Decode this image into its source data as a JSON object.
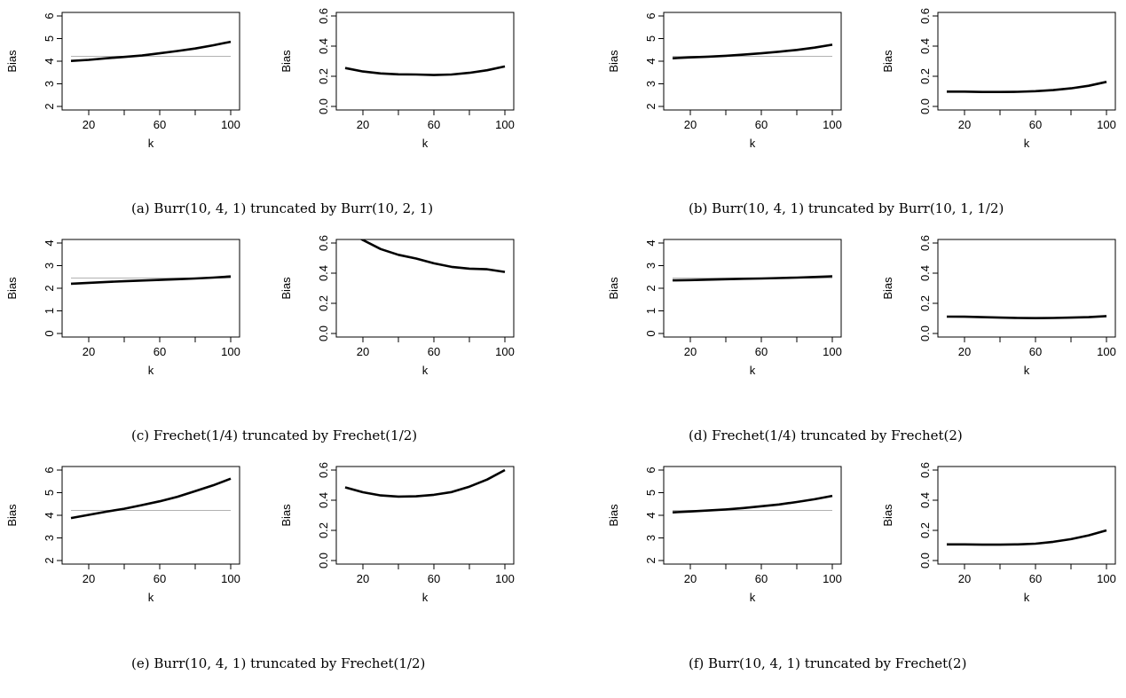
{
  "chart_data": [
    {
      "type": "line",
      "caption": "(a) Burr(10, 4, 1) truncated by Burr(10, 2, 1)",
      "panels": [
        {
          "xlabel": "k",
          "ylabel": "Bias",
          "xlim": [
            10,
            100
          ],
          "xticks": [
            20,
            40,
            60,
            80,
            100
          ],
          "xtick_labels": [
            "20",
            "",
            "60",
            "",
            "100"
          ],
          "ylim": [
            2,
            6
          ],
          "yticks": [
            2,
            3,
            4,
            5,
            6
          ],
          "ytick_labels": [
            "2",
            "3",
            "4",
            "5",
            "6"
          ],
          "reference": 4.22,
          "x": [
            10,
            20,
            30,
            40,
            50,
            60,
            70,
            80,
            90,
            100
          ],
          "y": [
            4.01,
            4.06,
            4.13,
            4.19,
            4.25,
            4.35,
            4.45,
            4.56,
            4.7,
            4.86
          ]
        },
        {
          "xlabel": "k",
          "ylabel": "Bias",
          "xlim": [
            10,
            100
          ],
          "xticks": [
            20,
            40,
            60,
            80,
            100
          ],
          "xtick_labels": [
            "20",
            "",
            "60",
            "",
            "100"
          ],
          "ylim": [
            0,
            0.6
          ],
          "yticks": [
            0,
            0.2,
            0.4,
            0.6
          ],
          "ytick_labels": [
            "0.0",
            "0.2",
            "0.4",
            "0.6"
          ],
          "x": [
            10,
            20,
            30,
            40,
            50,
            60,
            70,
            80,
            90,
            100
          ],
          "y": [
            0.255,
            0.232,
            0.219,
            0.213,
            0.212,
            0.208,
            0.212,
            0.223,
            0.24,
            0.265
          ]
        }
      ]
    },
    {
      "type": "line",
      "caption": "(b) Burr(10, 4, 1) truncated by Burr(10, 1, 1/2)",
      "panels": [
        {
          "xlabel": "k",
          "ylabel": "Bias",
          "xlim": [
            10,
            100
          ],
          "xticks": [
            20,
            40,
            60,
            80,
            100
          ],
          "xtick_labels": [
            "20",
            "",
            "60",
            "",
            "100"
          ],
          "ylim": [
            2,
            6
          ],
          "yticks": [
            2,
            3,
            4,
            5,
            6
          ],
          "ytick_labels": [
            "2",
            "3",
            "4",
            "5",
            "6"
          ],
          "reference": 4.22,
          "x": [
            10,
            20,
            30,
            40,
            50,
            60,
            70,
            80,
            90,
            100
          ],
          "y": [
            4.13,
            4.17,
            4.2,
            4.24,
            4.29,
            4.35,
            4.42,
            4.5,
            4.6,
            4.73
          ]
        },
        {
          "xlabel": "k",
          "ylabel": "Bias",
          "xlim": [
            10,
            100
          ],
          "xticks": [
            20,
            40,
            60,
            80,
            100
          ],
          "xtick_labels": [
            "20",
            "",
            "60",
            "",
            "100"
          ],
          "ylim": [
            0,
            0.6
          ],
          "yticks": [
            0,
            0.2,
            0.4,
            0.6
          ],
          "ytick_labels": [
            "0.0",
            "0.2",
            "0.4",
            "0.6"
          ],
          "x": [
            10,
            20,
            30,
            40,
            50,
            60,
            70,
            80,
            90,
            100
          ],
          "y": [
            0.098,
            0.098,
            0.096,
            0.096,
            0.097,
            0.101,
            0.108,
            0.12,
            0.137,
            0.163
          ]
        }
      ]
    },
    {
      "type": "line",
      "caption": "(c) Frechet(1/4) truncated by Frechet(1/2)",
      "panels": [
        {
          "xlabel": "k",
          "ylabel": "Bias",
          "xlim": [
            10,
            100
          ],
          "xticks": [
            20,
            40,
            60,
            80,
            100
          ],
          "xtick_labels": [
            "20",
            "",
            "60",
            "",
            "100"
          ],
          "ylim": [
            0,
            4
          ],
          "yticks": [
            0,
            1,
            2,
            3,
            4
          ],
          "ytick_labels": [
            "0",
            "1",
            "2",
            "3",
            "4"
          ],
          "reference": 2.45,
          "x": [
            10,
            20,
            30,
            40,
            50,
            60,
            70,
            80,
            90,
            100
          ],
          "y": [
            2.2,
            2.24,
            2.28,
            2.31,
            2.34,
            2.37,
            2.4,
            2.43,
            2.47,
            2.52
          ]
        },
        {
          "xlabel": "k",
          "ylabel": "Bias",
          "xlim": [
            10,
            100
          ],
          "xticks": [
            20,
            40,
            60,
            80,
            100
          ],
          "xtick_labels": [
            "20",
            "",
            "60",
            "",
            "100"
          ],
          "ylim": [
            0,
            0.6
          ],
          "yticks": [
            0,
            0.2,
            0.4,
            0.6
          ],
          "ytick_labels": [
            "0.0",
            "0.2",
            "0.4",
            "0.6"
          ],
          "x": [
            17,
            20,
            30,
            40,
            50,
            60,
            70,
            80,
            90,
            100
          ],
          "y": [
            0.64,
            0.62,
            0.56,
            0.522,
            0.497,
            0.465,
            0.442,
            0.43,
            0.426,
            0.408
          ]
        }
      ]
    },
    {
      "type": "line",
      "caption": "(d) Frechet(1/4) truncated by Frechet(2)",
      "panels": [
        {
          "xlabel": "k",
          "ylabel": "Bias",
          "xlim": [
            10,
            100
          ],
          "xticks": [
            20,
            40,
            60,
            80,
            100
          ],
          "xtick_labels": [
            "20",
            "",
            "60",
            "",
            "100"
          ],
          "ylim": [
            0,
            4
          ],
          "yticks": [
            0,
            1,
            2,
            3,
            4
          ],
          "ytick_labels": [
            "0",
            "1",
            "2",
            "3",
            "4"
          ],
          "reference": 2.45,
          "x": [
            10,
            20,
            30,
            40,
            50,
            60,
            70,
            80,
            90,
            100
          ],
          "y": [
            2.35,
            2.36,
            2.38,
            2.4,
            2.42,
            2.43,
            2.45,
            2.47,
            2.5,
            2.53
          ]
        },
        {
          "xlabel": "k",
          "ylabel": "Bias",
          "xlim": [
            10,
            100
          ],
          "xticks": [
            20,
            40,
            60,
            80,
            100
          ],
          "xtick_labels": [
            "20",
            "",
            "60",
            "",
            "100"
          ],
          "ylim": [
            0,
            0.6
          ],
          "yticks": [
            0,
            0.2,
            0.4,
            0.6
          ],
          "ytick_labels": [
            "0.0",
            "0.2",
            "0.4",
            "0.6"
          ],
          "x": [
            10,
            20,
            30,
            40,
            50,
            60,
            70,
            80,
            90,
            100
          ],
          "y": [
            0.112,
            0.111,
            0.108,
            0.105,
            0.103,
            0.102,
            0.103,
            0.105,
            0.108,
            0.115
          ]
        }
      ]
    },
    {
      "type": "line",
      "caption": "(e) Burr(10, 4, 1) truncated by Frechet(1/2)",
      "panels": [
        {
          "xlabel": "k",
          "ylabel": "Bias",
          "xlim": [
            10,
            100
          ],
          "xticks": [
            20,
            40,
            60,
            80,
            100
          ],
          "xtick_labels": [
            "20",
            "",
            "60",
            "",
            "100"
          ],
          "ylim": [
            2,
            6
          ],
          "yticks": [
            2,
            3,
            4,
            5,
            6
          ],
          "ytick_labels": [
            "2",
            "3",
            "4",
            "5",
            "6"
          ],
          "reference": 4.22,
          "x": [
            10,
            20,
            30,
            40,
            50,
            60,
            70,
            80,
            90,
            100
          ],
          "y": [
            3.88,
            4.02,
            4.16,
            4.29,
            4.45,
            4.62,
            4.82,
            5.07,
            5.32,
            5.62
          ]
        },
        {
          "xlabel": "k",
          "ylabel": "Bias",
          "xlim": [
            10,
            100
          ],
          "xticks": [
            20,
            40,
            60,
            80,
            100
          ],
          "xtick_labels": [
            "20",
            "",
            "60",
            "",
            "100"
          ],
          "ylim": [
            0,
            0.6
          ],
          "yticks": [
            0,
            0.2,
            0.4,
            0.6
          ],
          "ytick_labels": [
            "0.0",
            "0.2",
            "0.4",
            "0.6"
          ],
          "x": [
            10,
            20,
            30,
            40,
            50,
            60,
            70,
            80,
            90,
            100
          ],
          "y": [
            0.485,
            0.453,
            0.432,
            0.424,
            0.426,
            0.436,
            0.454,
            0.49,
            0.537,
            0.6
          ]
        }
      ]
    },
    {
      "type": "line",
      "caption": "(f) Burr(10, 4, 1) truncated by Frechet(2)",
      "panels": [
        {
          "xlabel": "k",
          "ylabel": "Bias",
          "xlim": [
            10,
            100
          ],
          "xticks": [
            20,
            40,
            60,
            80,
            100
          ],
          "xtick_labels": [
            "20",
            "",
            "60",
            "",
            "100"
          ],
          "ylim": [
            2,
            6
          ],
          "yticks": [
            2,
            3,
            4,
            5,
            6
          ],
          "ytick_labels": [
            "2",
            "3",
            "4",
            "5",
            "6"
          ],
          "reference": 4.22,
          "x": [
            10,
            20,
            30,
            40,
            50,
            60,
            70,
            80,
            90,
            100
          ],
          "y": [
            4.13,
            4.17,
            4.21,
            4.26,
            4.32,
            4.4,
            4.48,
            4.59,
            4.71,
            4.86
          ]
        },
        {
          "xlabel": "k",
          "ylabel": "Bias",
          "xlim": [
            10,
            100
          ],
          "xticks": [
            20,
            40,
            60,
            80,
            100
          ],
          "xtick_labels": [
            "20",
            "",
            "60",
            "",
            "100"
          ],
          "ylim": [
            0,
            0.6
          ],
          "yticks": [
            0,
            0.2,
            0.4,
            0.6
          ],
          "ytick_labels": [
            "0.0",
            "0.2",
            "0.4",
            "0.6"
          ],
          "x": [
            10,
            20,
            30,
            40,
            50,
            60,
            70,
            80,
            90,
            100
          ],
          "y": [
            0.107,
            0.107,
            0.105,
            0.105,
            0.107,
            0.112,
            0.124,
            0.142,
            0.167,
            0.2
          ]
        }
      ]
    }
  ]
}
